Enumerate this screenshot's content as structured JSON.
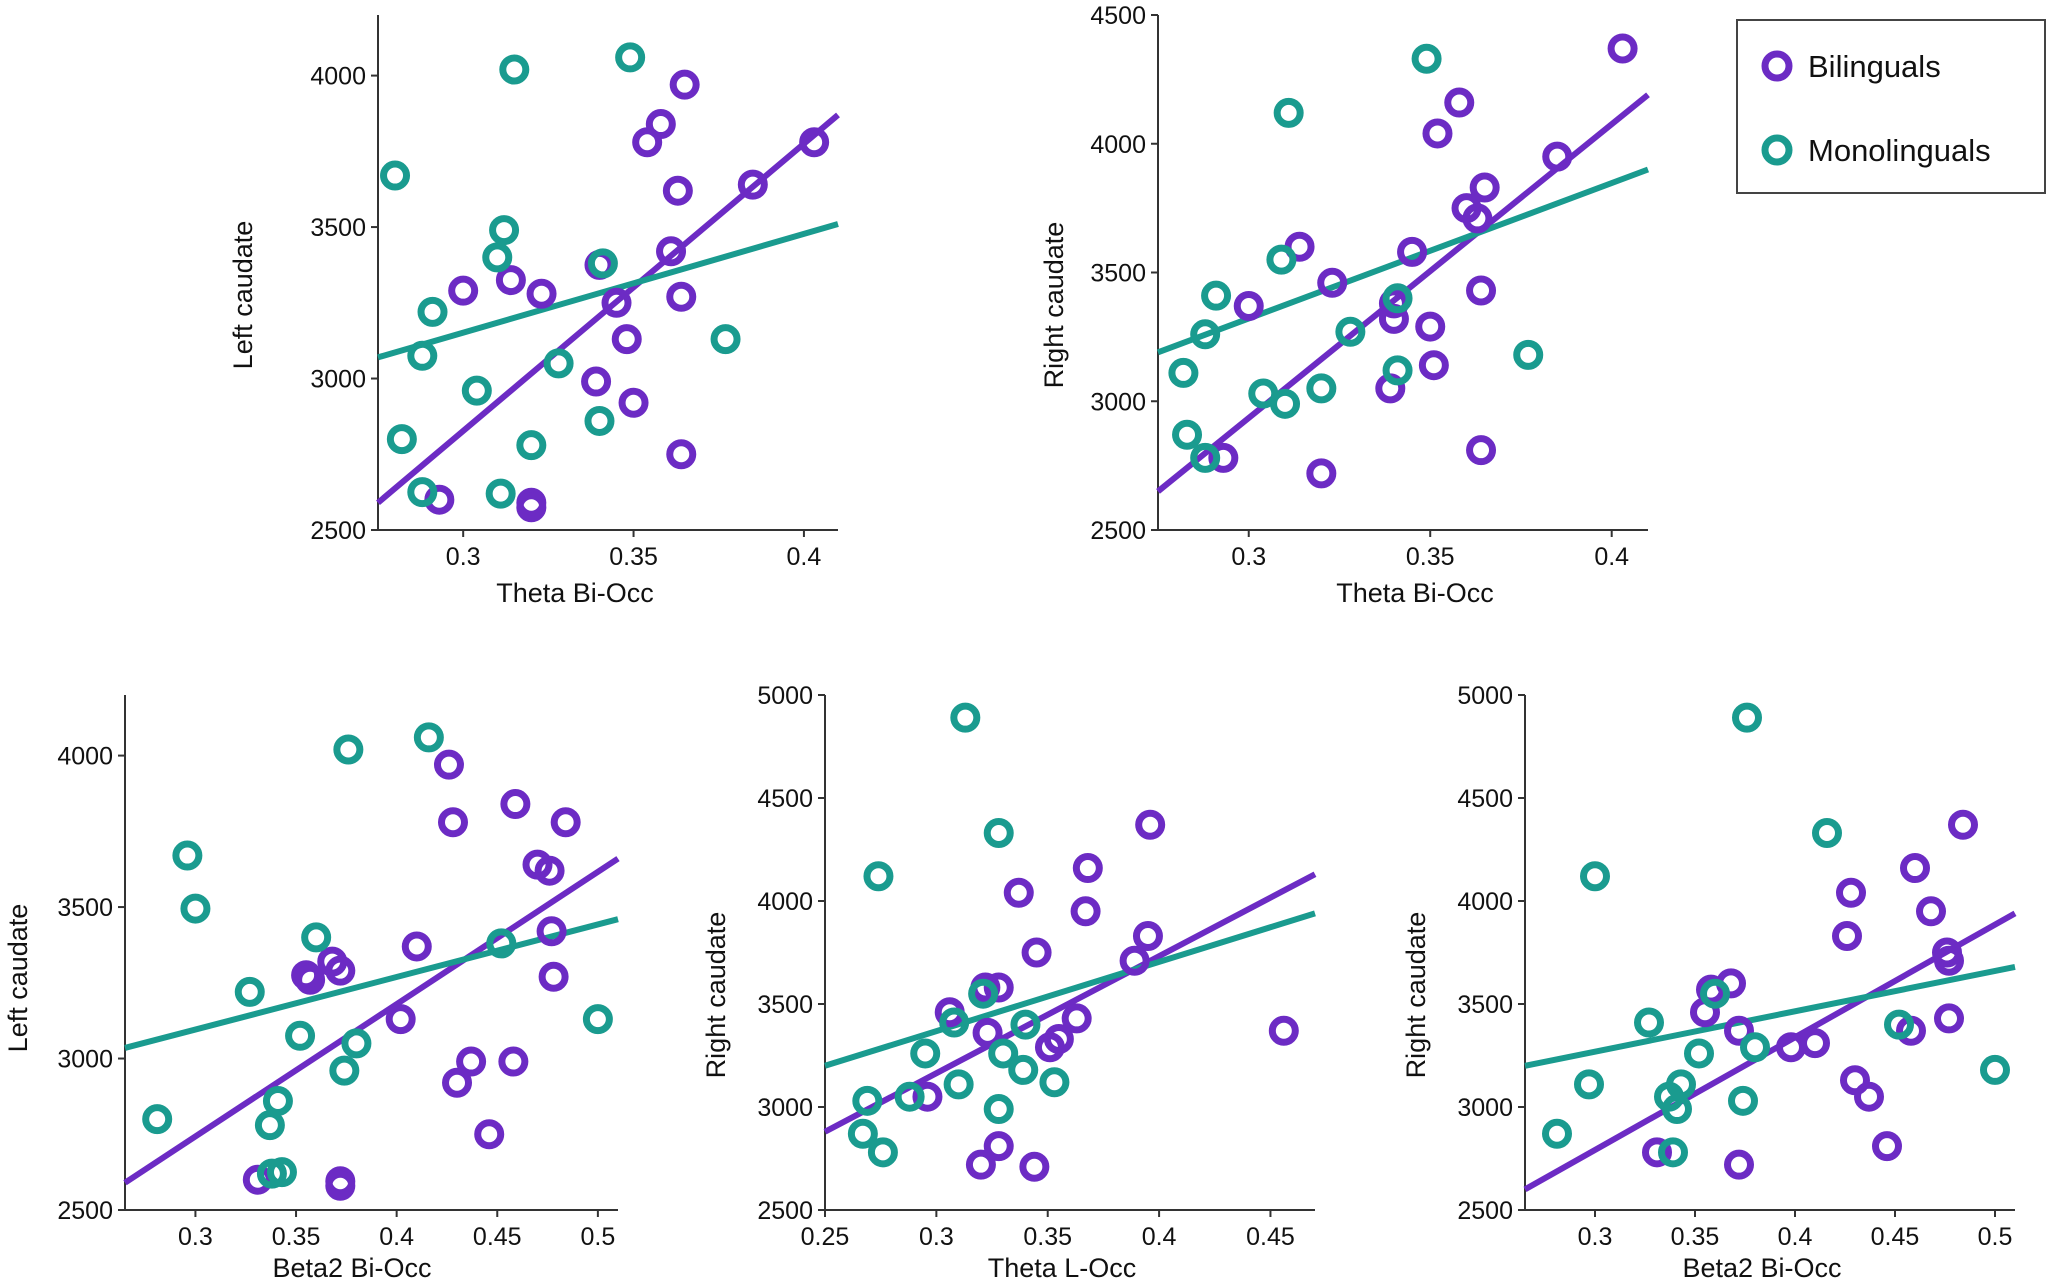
{
  "colors": {
    "bilinguals": "#6c2bc4",
    "monolinguals": "#1a9b8f"
  },
  "legend": {
    "placement": "top-right",
    "items": [
      {
        "label": "Bilinguals",
        "color": "#6c2bc4"
      },
      {
        "label": "Monolinguals",
        "color": "#1a9b8f"
      }
    ]
  },
  "chart_data": [
    {
      "type": "scatter",
      "title": "",
      "xlabel": "Theta Bi-Occ",
      "ylabel": "Left caudate",
      "xlim": [
        0.275,
        0.41
      ],
      "ylim": [
        2500,
        4200
      ],
      "xticks": [
        0.3,
        0.35,
        0.4
      ],
      "yticks": [
        2500,
        3000,
        3500,
        4000
      ],
      "grid": false,
      "series": [
        {
          "name": "Bilinguals",
          "points": [
            [
              0.293,
              2600
            ],
            [
              0.3,
              3290
            ],
            [
              0.314,
              3325
            ],
            [
              0.32,
              2590
            ],
            [
              0.32,
              2575
            ],
            [
              0.323,
              3280
            ],
            [
              0.339,
              2990
            ],
            [
              0.34,
              3375
            ],
            [
              0.345,
              3250
            ],
            [
              0.348,
              3130
            ],
            [
              0.35,
              2920
            ],
            [
              0.354,
              3780
            ],
            [
              0.358,
              3840
            ],
            [
              0.361,
              3420
            ],
            [
              0.363,
              3620
            ],
            [
              0.364,
              3270
            ],
            [
              0.364,
              2750
            ],
            [
              0.365,
              3970
            ],
            [
              0.385,
              3640
            ],
            [
              0.403,
              3780
            ]
          ],
          "fit": [
            [
              0.275,
              2590
            ],
            [
              0.41,
              3870
            ]
          ]
        },
        {
          "name": "Monolinguals",
          "points": [
            [
              0.28,
              3670
            ],
            [
              0.282,
              2800
            ],
            [
              0.288,
              3075
            ],
            [
              0.288,
              2625
            ],
            [
              0.291,
              3220
            ],
            [
              0.304,
              2960
            ],
            [
              0.31,
              3400
            ],
            [
              0.311,
              2620
            ],
            [
              0.312,
              3490
            ],
            [
              0.315,
              4020
            ],
            [
              0.32,
              2780
            ],
            [
              0.328,
              3050
            ],
            [
              0.34,
              2860
            ],
            [
              0.341,
              3380
            ],
            [
              0.349,
              4060
            ],
            [
              0.377,
              3130
            ]
          ],
          "fit": [
            [
              0.275,
              3070
            ],
            [
              0.41,
              3510
            ]
          ]
        }
      ]
    },
    {
      "type": "scatter",
      "title": "",
      "xlabel": "Theta Bi-Occ",
      "ylabel": "Right caudate",
      "xlim": [
        0.275,
        0.41
      ],
      "ylim": [
        2500,
        4500
      ],
      "xticks": [
        0.3,
        0.35,
        0.4
      ],
      "yticks": [
        2500,
        3000,
        3500,
        4000,
        4500
      ],
      "grid": false,
      "series": [
        {
          "name": "Bilinguals",
          "points": [
            [
              0.293,
              2780
            ],
            [
              0.3,
              3370
            ],
            [
              0.314,
              3600
            ],
            [
              0.32,
              2720
            ],
            [
              0.323,
              3460
            ],
            [
              0.339,
              3050
            ],
            [
              0.34,
              3380
            ],
            [
              0.34,
              3320
            ],
            [
              0.345,
              3580
            ],
            [
              0.35,
              3290
            ],
            [
              0.351,
              3140
            ],
            [
              0.352,
              4040
            ],
            [
              0.358,
              4160
            ],
            [
              0.36,
              3750
            ],
            [
              0.363,
              3710
            ],
            [
              0.364,
              3430
            ],
            [
              0.364,
              2810
            ],
            [
              0.365,
              3830
            ],
            [
              0.385,
              3950
            ],
            [
              0.403,
              4370
            ]
          ],
          "fit": [
            [
              0.275,
              2650
            ],
            [
              0.41,
              4190
            ]
          ]
        },
        {
          "name": "Monolinguals",
          "points": [
            [
              0.282,
              3110
            ],
            [
              0.283,
              2870
            ],
            [
              0.288,
              2780
            ],
            [
              0.288,
              3260
            ],
            [
              0.291,
              3410
            ],
            [
              0.304,
              3030
            ],
            [
              0.309,
              3550
            ],
            [
              0.31,
              2990
            ],
            [
              0.311,
              4120
            ],
            [
              0.32,
              3050
            ],
            [
              0.328,
              3270
            ],
            [
              0.341,
              3400
            ],
            [
              0.341,
              3120
            ],
            [
              0.349,
              4330
            ],
            [
              0.377,
              3180
            ]
          ],
          "fit": [
            [
              0.275,
              3190
            ],
            [
              0.41,
              3900
            ]
          ]
        }
      ]
    },
    {
      "type": "scatter",
      "title": "",
      "xlabel": "Beta2 Bi-Occ",
      "ylabel": "Left caudate",
      "xlim": [
        0.265,
        0.51
      ],
      "ylim": [
        2500,
        4200
      ],
      "xticks": [
        0.3,
        0.35,
        0.4,
        0.45,
        0.5
      ],
      "yticks": [
        2500,
        3000,
        3500,
        4000
      ],
      "grid": false,
      "series": [
        {
          "name": "Bilinguals",
          "points": [
            [
              0.331,
              2600
            ],
            [
              0.355,
              3275
            ],
            [
              0.357,
              3260
            ],
            [
              0.368,
              3320
            ],
            [
              0.372,
              3290
            ],
            [
              0.372,
              2595
            ],
            [
              0.372,
              2580
            ],
            [
              0.402,
              3130
            ],
            [
              0.41,
              3370
            ],
            [
              0.426,
              3970
            ],
            [
              0.428,
              3780
            ],
            [
              0.43,
              2920
            ],
            [
              0.437,
              2990
            ],
            [
              0.446,
              2750
            ],
            [
              0.458,
              2990
            ],
            [
              0.459,
              3840
            ],
            [
              0.47,
              3640
            ],
            [
              0.476,
              3620
            ],
            [
              0.477,
              3420
            ],
            [
              0.478,
              3270
            ],
            [
              0.484,
              3780
            ]
          ],
          "fit": [
            [
              0.265,
              2590
            ],
            [
              0.51,
              3660
            ]
          ]
        },
        {
          "name": "Monolinguals",
          "points": [
            [
              0.281,
              2800
            ],
            [
              0.296,
              3670
            ],
            [
              0.3,
              3495
            ],
            [
              0.327,
              3220
            ],
            [
              0.337,
              2780
            ],
            [
              0.338,
              2620
            ],
            [
              0.341,
              2860
            ],
            [
              0.343,
              2625
            ],
            [
              0.352,
              3075
            ],
            [
              0.36,
              3400
            ],
            [
              0.374,
              2960
            ],
            [
              0.376,
              4020
            ],
            [
              0.38,
              3050
            ],
            [
              0.416,
              4060
            ],
            [
              0.452,
              3380
            ],
            [
              0.5,
              3130
            ]
          ],
          "fit": [
            [
              0.265,
              3035
            ],
            [
              0.51,
              3460
            ]
          ]
        }
      ]
    },
    {
      "type": "scatter",
      "title": "",
      "xlabel": "Theta L-Occ",
      "ylabel": "Right caudate",
      "xlim": [
        0.25,
        0.47
      ],
      "ylim": [
        2500,
        5000
      ],
      "xticks": [
        0.25,
        0.3,
        0.35,
        0.4,
        0.45
      ],
      "yticks": [
        2500,
        3000,
        3500,
        4000,
        4500,
        5000
      ],
      "grid": false,
      "series": [
        {
          "name": "Bilinguals",
          "points": [
            [
              0.296,
              3050
            ],
            [
              0.306,
              3460
            ],
            [
              0.32,
              2720
            ],
            [
              0.322,
              3580
            ],
            [
              0.323,
              3360
            ],
            [
              0.328,
              3580
            ],
            [
              0.328,
              2810
            ],
            [
              0.337,
              4040
            ],
            [
              0.344,
              2710
            ],
            [
              0.345,
              3750
            ],
            [
              0.351,
              3290
            ],
            [
              0.355,
              3330
            ],
            [
              0.363,
              3430
            ],
            [
              0.367,
              3950
            ],
            [
              0.368,
              4160
            ],
            [
              0.389,
              3710
            ],
            [
              0.395,
              3830
            ],
            [
              0.396,
              4370
            ],
            [
              0.456,
              3370
            ]
          ],
          "fit": [
            [
              0.25,
              2880
            ],
            [
              0.47,
              4130
            ]
          ]
        },
        {
          "name": "Monolinguals",
          "points": [
            [
              0.267,
              2870
            ],
            [
              0.269,
              3030
            ],
            [
              0.274,
              4120
            ],
            [
              0.276,
              2780
            ],
            [
              0.288,
              3050
            ],
            [
              0.295,
              3260
            ],
            [
              0.308,
              3410
            ],
            [
              0.31,
              3110
            ],
            [
              0.313,
              4890
            ],
            [
              0.321,
              3550
            ],
            [
              0.328,
              2990
            ],
            [
              0.328,
              4330
            ],
            [
              0.33,
              3260
            ],
            [
              0.339,
              3180
            ],
            [
              0.34,
              3400
            ],
            [
              0.353,
              3120
            ]
          ],
          "fit": [
            [
              0.25,
              3200
            ],
            [
              0.47,
              3940
            ]
          ]
        }
      ]
    },
    {
      "type": "scatter",
      "title": "",
      "xlabel": "Beta2 Bi-Occ",
      "ylabel": "Right caudate",
      "xlim": [
        0.265,
        0.51
      ],
      "ylim": [
        2500,
        5000
      ],
      "xticks": [
        0.3,
        0.35,
        0.4,
        0.45,
        0.5
      ],
      "yticks": [
        2500,
        3000,
        3500,
        4000,
        4500,
        5000
      ],
      "grid": false,
      "series": [
        {
          "name": "Bilinguals",
          "points": [
            [
              0.331,
              2780
            ],
            [
              0.355,
              3460
            ],
            [
              0.358,
              3570
            ],
            [
              0.368,
              3600
            ],
            [
              0.372,
              2720
            ],
            [
              0.372,
              3370
            ],
            [
              0.398,
              3290
            ],
            [
              0.41,
              3310
            ],
            [
              0.426,
              3830
            ],
            [
              0.428,
              4040
            ],
            [
              0.43,
              3130
            ],
            [
              0.437,
              3050
            ],
            [
              0.446,
              2810
            ],
            [
              0.458,
              3370
            ],
            [
              0.46,
              4160
            ],
            [
              0.468,
              3950
            ],
            [
              0.476,
              3750
            ],
            [
              0.477,
              3710
            ],
            [
              0.477,
              3430
            ],
            [
              0.484,
              4370
            ]
          ],
          "fit": [
            [
              0.265,
              2600
            ],
            [
              0.51,
              3940
            ]
          ]
        },
        {
          "name": "Monolinguals",
          "points": [
            [
              0.281,
              2870
            ],
            [
              0.297,
              3110
            ],
            [
              0.3,
              4120
            ],
            [
              0.327,
              3410
            ],
            [
              0.337,
              3050
            ],
            [
              0.339,
              2780
            ],
            [
              0.341,
              2990
            ],
            [
              0.343,
              3110
            ],
            [
              0.352,
              3260
            ],
            [
              0.36,
              3550
            ],
            [
              0.374,
              3030
            ],
            [
              0.376,
              4890
            ],
            [
              0.38,
              3290
            ],
            [
              0.416,
              4330
            ],
            [
              0.452,
              3400
            ],
            [
              0.5,
              3180
            ]
          ],
          "fit": [
            [
              0.265,
              3200
            ],
            [
              0.51,
              3680
            ]
          ]
        }
      ]
    }
  ]
}
